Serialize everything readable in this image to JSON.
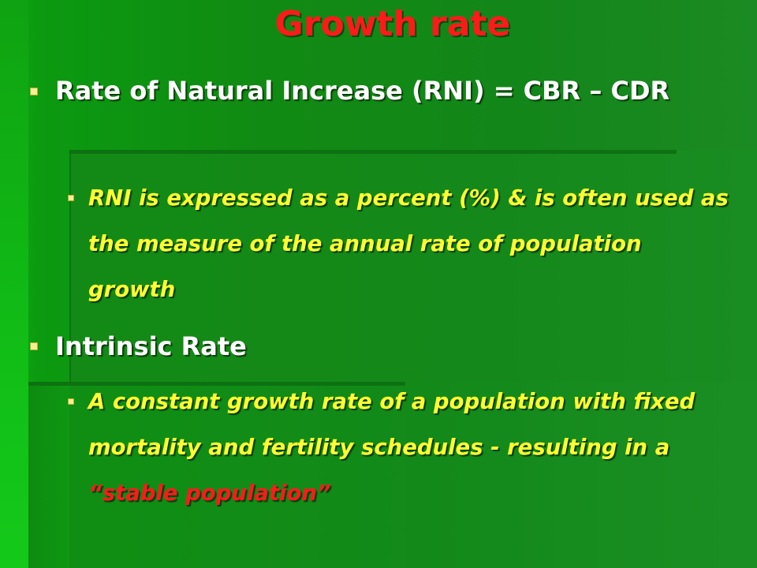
{
  "slide": {
    "title": "Growth rate",
    "bullets": [
      {
        "text": "Rate of Natural Increase (RNI) = CBR – CDR",
        "sub": [
          {
            "text": "RNI is expressed as a percent (%) & is often used as the measure of the annual rate of population growth"
          }
        ]
      },
      {
        "text": "Intrinsic Rate",
        "sub": [
          {
            "text_before": "A constant growth rate of a population with fixed mortality and fertility schedules - resulting in a ",
            "highlight": "“stable population”"
          }
        ]
      }
    ]
  },
  "colors": {
    "title": "#ff1a1a",
    "level1_text": "#ffffff",
    "level2_text": "#ffff33",
    "highlight": "#ff1a1a",
    "background": "#13881a",
    "bullet_marker": "#f5ef9a"
  }
}
